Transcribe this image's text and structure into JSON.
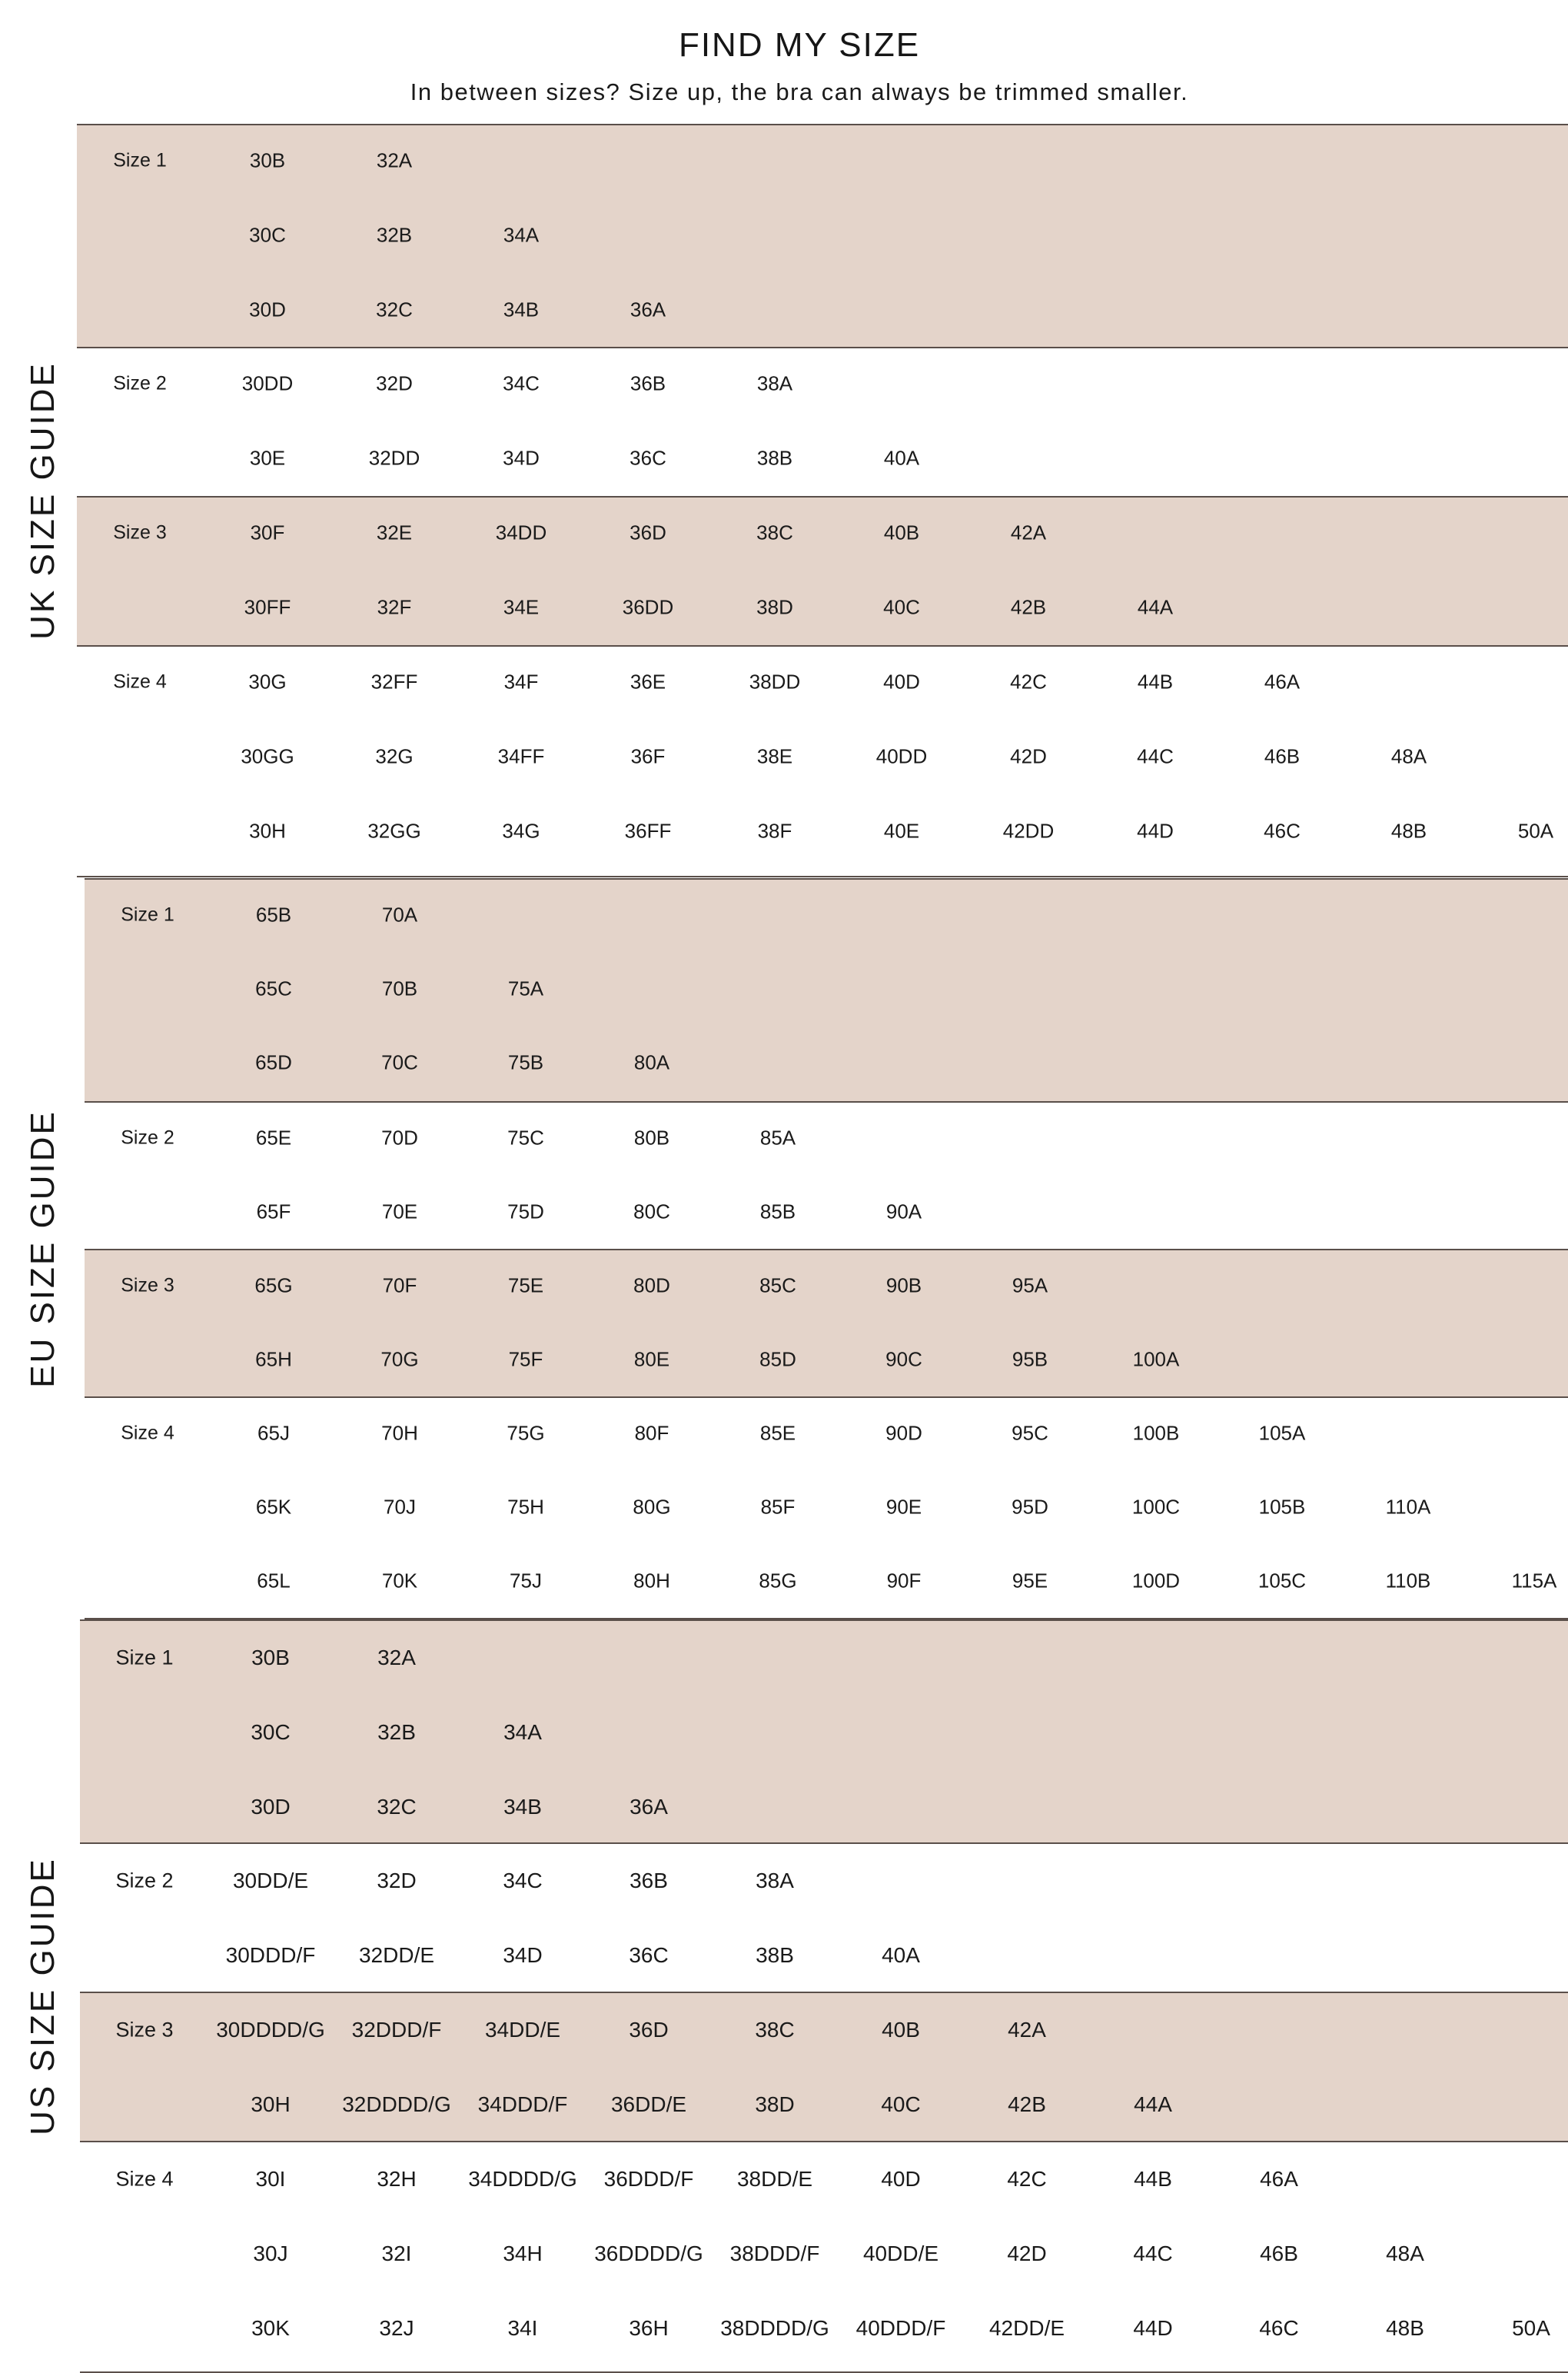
{
  "title": "FIND MY SIZE",
  "subtitle": "In between sizes? Size up, the bra can always be trimmed smaller.",
  "colors": {
    "shaded_row": "#e4d4ca",
    "divider": "#5a4f4a",
    "text": "#1a1a1a"
  },
  "guides": [
    {
      "label": "UK SIZE GUIDE",
      "groups": [
        {
          "name": "Size 1",
          "rows": [
            [
              "30B",
              "32A"
            ],
            [
              "30C",
              "32B",
              "34A"
            ],
            [
              "30D",
              "32C",
              "34B",
              "36A"
            ]
          ]
        },
        {
          "name": "Size 2",
          "rows": [
            [
              "30DD",
              "32D",
              "34C",
              "36B",
              "38A"
            ],
            [
              "30E",
              "32DD",
              "34D",
              "36C",
              "38B",
              "40A"
            ]
          ]
        },
        {
          "name": "Size 3",
          "rows": [
            [
              "30F",
              "32E",
              "34DD",
              "36D",
              "38C",
              "40B",
              "42A"
            ],
            [
              "30FF",
              "32F",
              "34E",
              "36DD",
              "38D",
              "40C",
              "42B",
              "44A"
            ]
          ]
        },
        {
          "name": "Size 4",
          "rows": [
            [
              "30G",
              "32FF",
              "34F",
              "36E",
              "38DD",
              "40D",
              "42C",
              "44B",
              "46A"
            ],
            [
              "30GG",
              "32G",
              "34FF",
              "36F",
              "38E",
              "40DD",
              "42D",
              "44C",
              "46B",
              "48A"
            ],
            [
              "30H",
              "32GG",
              "34G",
              "36FF",
              "38F",
              "40E",
              "42DD",
              "44D",
              "46C",
              "48B",
              "50A"
            ]
          ]
        }
      ]
    },
    {
      "label": "EU SIZE GUIDE",
      "groups": [
        {
          "name": "Size 1",
          "rows": [
            [
              "65B",
              "70A"
            ],
            [
              "65C",
              "70B",
              "75A"
            ],
            [
              "65D",
              "70C",
              "75B",
              "80A"
            ]
          ]
        },
        {
          "name": "Size 2",
          "rows": [
            [
              "65E",
              "70D",
              "75C",
              "80B",
              "85A"
            ],
            [
              "65F",
              "70E",
              "75D",
              "80C",
              "85B",
              "90A"
            ]
          ]
        },
        {
          "name": "Size 3",
          "rows": [
            [
              "65G",
              "70F",
              "75E",
              "80D",
              "85C",
              "90B",
              "95A"
            ],
            [
              "65H",
              "70G",
              "75F",
              "80E",
              "85D",
              "90C",
              "95B",
              "100A"
            ]
          ]
        },
        {
          "name": "Size 4",
          "rows": [
            [
              "65J",
              "70H",
              "75G",
              "80F",
              "85E",
              "90D",
              "95C",
              "100B",
              "105A"
            ],
            [
              "65K",
              "70J",
              "75H",
              "80G",
              "85F",
              "90E",
              "95D",
              "100C",
              "105B",
              "110A"
            ],
            [
              "65L",
              "70K",
              "75J",
              "80H",
              "85G",
              "90F",
              "95E",
              "100D",
              "105C",
              "110B",
              "115A"
            ]
          ]
        }
      ]
    },
    {
      "label": "US SIZE GUIDE",
      "groups": [
        {
          "name": "Size 1",
          "rows": [
            [
              "30B",
              "32A"
            ],
            [
              "30C",
              "32B",
              "34A"
            ],
            [
              "30D",
              "32C",
              "34B",
              "36A"
            ]
          ]
        },
        {
          "name": "Size 2",
          "rows": [
            [
              "30DD/E",
              "32D",
              "34C",
              "36B",
              "38A"
            ],
            [
              "30DDD/F",
              "32DD/E",
              "34D",
              "36C",
              "38B",
              "40A"
            ]
          ]
        },
        {
          "name": "Size 3",
          "rows": [
            [
              "30DDDD/G",
              "32DDD/F",
              "34DD/E",
              "36D",
              "38C",
              "40B",
              "42A"
            ],
            [
              "30H",
              "32DDDD/G",
              "34DDD/F",
              "36DD/E",
              "38D",
              "40C",
              "42B",
              "44A"
            ]
          ]
        },
        {
          "name": "Size 4",
          "rows": [
            [
              "30I",
              "32H",
              "34DDDD/G",
              "36DDD/F",
              "38DD/E",
              "40D",
              "42C",
              "44B",
              "46A"
            ],
            [
              "30J",
              "32I",
              "34H",
              "36DDDD/G",
              "38DDD/F",
              "40DD/E",
              "42D",
              "44C",
              "46B",
              "48A"
            ],
            [
              "30K",
              "32J",
              "34I",
              "36H",
              "38DDDD/G",
              "40DDD/F",
              "42DD/E",
              "44D",
              "46C",
              "48B",
              "50A"
            ]
          ]
        }
      ]
    }
  ]
}
